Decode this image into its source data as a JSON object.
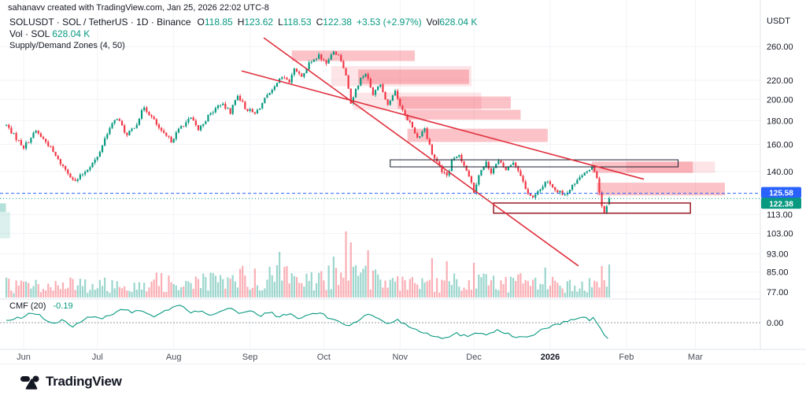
{
  "attribution": "sahanavv created with TradingView.com, Jan 25, 2026 22:02 UTC-8",
  "legend": {
    "title": "SOLUSDT · SOL / TetherUS · 1D · Binance",
    "ohlc": {
      "o_label": "O",
      "o": "118.85",
      "h_label": "H",
      "h": "123.62",
      "l_label": "L",
      "l": "118.53",
      "c_label": "C",
      "c": "122.38",
      "change": "+3.53 (+2.97%)",
      "vol_label": "Vol",
      "vol": "628.04 K"
    },
    "volume_line": {
      "label": "Vol · SOL",
      "value": "628.04 K"
    },
    "indicator_line": {
      "label": "Supply/Demand Zones (4, 50)"
    }
  },
  "price_axis": {
    "currency": "USDT",
    "labels": [
      {
        "text": "260.00",
        "value": 260
      },
      {
        "text": "220.00",
        "value": 220
      },
      {
        "text": "200.00",
        "value": 200
      },
      {
        "text": "180.00",
        "value": 180
      },
      {
        "text": "160.00",
        "value": 160
      },
      {
        "text": "140.00",
        "value": 140
      },
      {
        "text": "113.00",
        "value": 113
      },
      {
        "text": "103.00",
        "value": 103
      },
      {
        "text": "93.00",
        "value": 93
      },
      {
        "text": "85.00",
        "value": 85
      },
      {
        "text": "77.00",
        "value": 77
      }
    ]
  },
  "time_axis": {
    "labels": [
      {
        "text": "Jun",
        "day": 0,
        "major": false
      },
      {
        "text": "Jul",
        "day": 30,
        "major": false
      },
      {
        "text": "Aug",
        "day": 61,
        "major": false
      },
      {
        "text": "Sep",
        "day": 92,
        "major": false
      },
      {
        "text": "Oct",
        "day": 122,
        "major": false
      },
      {
        "text": "Nov",
        "day": 153,
        "major": false
      },
      {
        "text": "Dec",
        "day": 183,
        "major": false
      },
      {
        "text": "2026",
        "day": 214,
        "major": true
      },
      {
        "text": "Feb",
        "day": 245,
        "major": false
      },
      {
        "text": "Mar",
        "day": 273,
        "major": false
      }
    ]
  },
  "cmf": {
    "label": "CMF (20)",
    "value": "-0.19",
    "zero_label": "0.00"
  },
  "footer": {
    "logo_text": "TradingView"
  },
  "colors": {
    "up": "#089981",
    "down": "#f23645",
    "volUp": "rgba(8,153,129,0.40)",
    "volDown": "rgba(242,54,69,0.40)",
    "zoneSolid": "rgba(242,54,69,0.30)",
    "zoneLight": "rgba(242,54,69,0.13)",
    "demandSolid": "rgba(8,153,129,0.30)",
    "demandLight": "rgba(8,153,129,0.14)",
    "blue": "#2962ff",
    "trend": "#e0313f",
    "grid": "#f2f3f7",
    "divider": "#e0e3eb",
    "text": "#131722",
    "timeText": "#4a4e59",
    "boxDark": "#1c2030",
    "boxRed": "#9b1b27"
  },
  "chart_data": {
    "type": "candlestick",
    "symbol": "SOLUSDT",
    "description": "SOL / TetherUS",
    "exchange": "Binance",
    "interval": "1D",
    "scale": "log",
    "currency": "USDT",
    "x_range": [
      "Jun",
      "Mar"
    ],
    "y_axis_labels": [
      260,
      220,
      200,
      180,
      160,
      140,
      113,
      103,
      93,
      85,
      77
    ],
    "ohlc_current": {
      "open": 118.85,
      "high": 123.62,
      "low": 118.53,
      "close": 122.38,
      "change": 3.53,
      "change_pct": 2.97,
      "volume": "628.04 K"
    },
    "price_waypoints": [
      [
        -7,
        176
      ],
      [
        -3,
        165
      ],
      [
        0,
        158
      ],
      [
        5,
        171
      ],
      [
        10,
        160
      ],
      [
        14,
        148
      ],
      [
        21,
        133
      ],
      [
        26,
        142
      ],
      [
        30,
        150
      ],
      [
        34,
        170
      ],
      [
        38,
        183
      ],
      [
        42,
        167
      ],
      [
        46,
        178
      ],
      [
        49,
        193
      ],
      [
        53,
        180
      ],
      [
        56,
        170
      ],
      [
        60,
        163
      ],
      [
        64,
        175
      ],
      [
        68,
        182
      ],
      [
        71,
        172
      ],
      [
        75,
        184
      ],
      [
        80,
        196
      ],
      [
        84,
        188
      ],
      [
        87,
        205
      ],
      [
        90,
        192
      ],
      [
        94,
        186
      ],
      [
        98,
        200
      ],
      [
        101,
        208
      ],
      [
        105,
        224
      ],
      [
        108,
        218
      ],
      [
        110,
        232
      ],
      [
        113,
        226
      ],
      [
        116,
        238
      ],
      [
        120,
        248
      ],
      [
        123,
        240
      ],
      [
        126,
        253
      ],
      [
        129,
        244
      ],
      [
        131,
        225
      ],
      [
        133,
        196
      ],
      [
        135,
        210
      ],
      [
        137,
        222
      ],
      [
        139,
        228
      ],
      [
        142,
        206
      ],
      [
        145,
        215
      ],
      [
        148,
        196
      ],
      [
        151,
        207
      ],
      [
        154,
        190
      ],
      [
        157,
        178
      ],
      [
        160,
        166
      ],
      [
        163,
        173
      ],
      [
        166,
        152
      ],
      [
        169,
        143
      ],
      [
        172,
        136
      ],
      [
        174,
        147
      ],
      [
        177,
        152
      ],
      [
        180,
        141
      ],
      [
        183,
        127
      ],
      [
        185,
        138
      ],
      [
        188,
        146
      ],
      [
        190,
        140
      ],
      [
        193,
        147
      ],
      [
        196,
        141
      ],
      [
        199,
        147
      ],
      [
        202,
        138
      ],
      [
        204,
        128
      ],
      [
        207,
        122.5
      ],
      [
        210,
        128
      ],
      [
        212,
        133
      ],
      [
        214,
        131
      ],
      [
        217,
        127
      ],
      [
        220,
        124
      ],
      [
        223,
        130
      ],
      [
        226,
        136
      ],
      [
        229,
        141
      ],
      [
        231,
        144
      ],
      [
        232,
        141
      ],
      [
        233,
        134
      ],
      [
        234,
        126
      ],
      [
        235,
        118
      ],
      [
        236,
        113.5
      ],
      [
        237,
        117
      ],
      [
        238,
        122.38
      ]
    ],
    "cmf_waypoints": [
      [
        -7,
        0.02
      ],
      [
        0,
        0.06
      ],
      [
        4,
        0.12
      ],
      [
        8,
        0.05
      ],
      [
        12,
        -0.02
      ],
      [
        16,
        0.04
      ],
      [
        20,
        -0.05
      ],
      [
        24,
        0.02
      ],
      [
        28,
        0.08
      ],
      [
        32,
        0.04
      ],
      [
        36,
        0.1
      ],
      [
        40,
        0.16
      ],
      [
        44,
        0.11
      ],
      [
        48,
        0.15
      ],
      [
        52,
        0.06
      ],
      [
        56,
        0.11
      ],
      [
        60,
        0.16
      ],
      [
        64,
        0.19
      ],
      [
        68,
        0.1
      ],
      [
        72,
        0.14
      ],
      [
        76,
        0.08
      ],
      [
        80,
        0.13
      ],
      [
        84,
        0.17
      ],
      [
        88,
        0.09
      ],
      [
        92,
        0.13
      ],
      [
        96,
        0.07
      ],
      [
        100,
        0.12
      ],
      [
        104,
        0.06
      ],
      [
        108,
        0.1
      ],
      [
        112,
        0.04
      ],
      [
        116,
        0.09
      ],
      [
        120,
        0.11
      ],
      [
        124,
        0.05
      ],
      [
        128,
        0.02
      ],
      [
        132,
        -0.04
      ],
      [
        136,
        0.03
      ],
      [
        140,
        0.09
      ],
      [
        144,
        0.05
      ],
      [
        148,
        -0.01
      ],
      [
        152,
        0.03
      ],
      [
        156,
        -0.03
      ],
      [
        160,
        -0.08
      ],
      [
        164,
        -0.12
      ],
      [
        168,
        -0.15
      ],
      [
        172,
        -0.17
      ],
      [
        176,
        -0.12
      ],
      [
        180,
        -0.15
      ],
      [
        184,
        -0.1
      ],
      [
        188,
        -0.13
      ],
      [
        192,
        -0.08
      ],
      [
        196,
        -0.12
      ],
      [
        200,
        -0.15
      ],
      [
        204,
        -0.17
      ],
      [
        208,
        -0.12
      ],
      [
        212,
        -0.06
      ],
      [
        216,
        -0.03
      ],
      [
        220,
        0.01
      ],
      [
        224,
        0.04
      ],
      [
        227,
        0.06
      ],
      [
        230,
        0.03
      ],
      [
        232,
        0.05
      ],
      [
        234,
        -0.04
      ],
      [
        236,
        -0.13
      ],
      [
        238,
        -0.19
      ]
    ],
    "zones": [
      {
        "style": "light",
        "d1": 125,
        "d2": 182,
        "p1": 236,
        "p2": 213.5
      },
      {
        "style": "light",
        "d1": 134,
        "d2": 186,
        "p1": 207,
        "p2": 190
      },
      {
        "style": "light",
        "d1": 245,
        "d2": 281,
        "p1": 147,
        "p2": 139
      },
      {
        "style": "solid",
        "d1": 109,
        "d2": 159,
        "p1": 255,
        "p2": 242
      },
      {
        "style": "solid",
        "d1": 136,
        "d2": 181,
        "p1": 232,
        "p2": 216
      },
      {
        "style": "solid",
        "d1": 152,
        "d2": 198,
        "p1": 203,
        "p2": 191
      },
      {
        "style": "solid",
        "d1": 155,
        "d2": 202,
        "p1": 190,
        "p2": 181
      },
      {
        "style": "solid",
        "d1": 156,
        "d2": 213,
        "p1": 173,
        "p2": 162
      },
      {
        "style": "solid",
        "d1": 231,
        "d2": 272,
        "p1": 147,
        "p2": 139
      },
      {
        "style": "solid",
        "d1": 233,
        "d2": 285,
        "p1": 132.4,
        "p2": 124.3
      },
      {
        "style": "demand-solid",
        "d1": -10,
        "d2": -7.2,
        "p1": 119.5,
        "p2": 114.5
      },
      {
        "style": "demand-light",
        "d1": -10,
        "d2": -5.5,
        "p1": 114.5,
        "p2": 100.5
      },
      {
        "style": "outline-dark",
        "d1": 149,
        "d2": 266,
        "p1": 148.3,
        "p2": 143.2
      },
      {
        "style": "outline-red",
        "d1": 191,
        "d2": 271,
        "p1": 119.7,
        "p2": 113.8
      }
    ],
    "trendlines": [
      {
        "d1": 88.6,
        "p1": 230.4,
        "d2": 252.1,
        "p2": 134.7
      },
      {
        "d1": 97.6,
        "p1": 271.6,
        "d2": 225.5,
        "p2": 87.6
      }
    ],
    "price_lines": [
      {
        "value": 125.58,
        "text": "125.58",
        "color": "#2962ff",
        "dash": "4,3"
      },
      {
        "value": 122.38,
        "text": "122.38",
        "color": "#089981",
        "dash": "1,3"
      }
    ],
    "volume_spikes": {
      "104": 58,
      "126": 52,
      "131": 84,
      "133": 70,
      "140": 60,
      "166": 50,
      "172": 46,
      "183": 44,
      "212": 38,
      "235": 40,
      "238": 42
    },
    "indicator": {
      "name": "CMF",
      "length": 20,
      "current_value": -0.19
    },
    "legend_grid": false
  }
}
